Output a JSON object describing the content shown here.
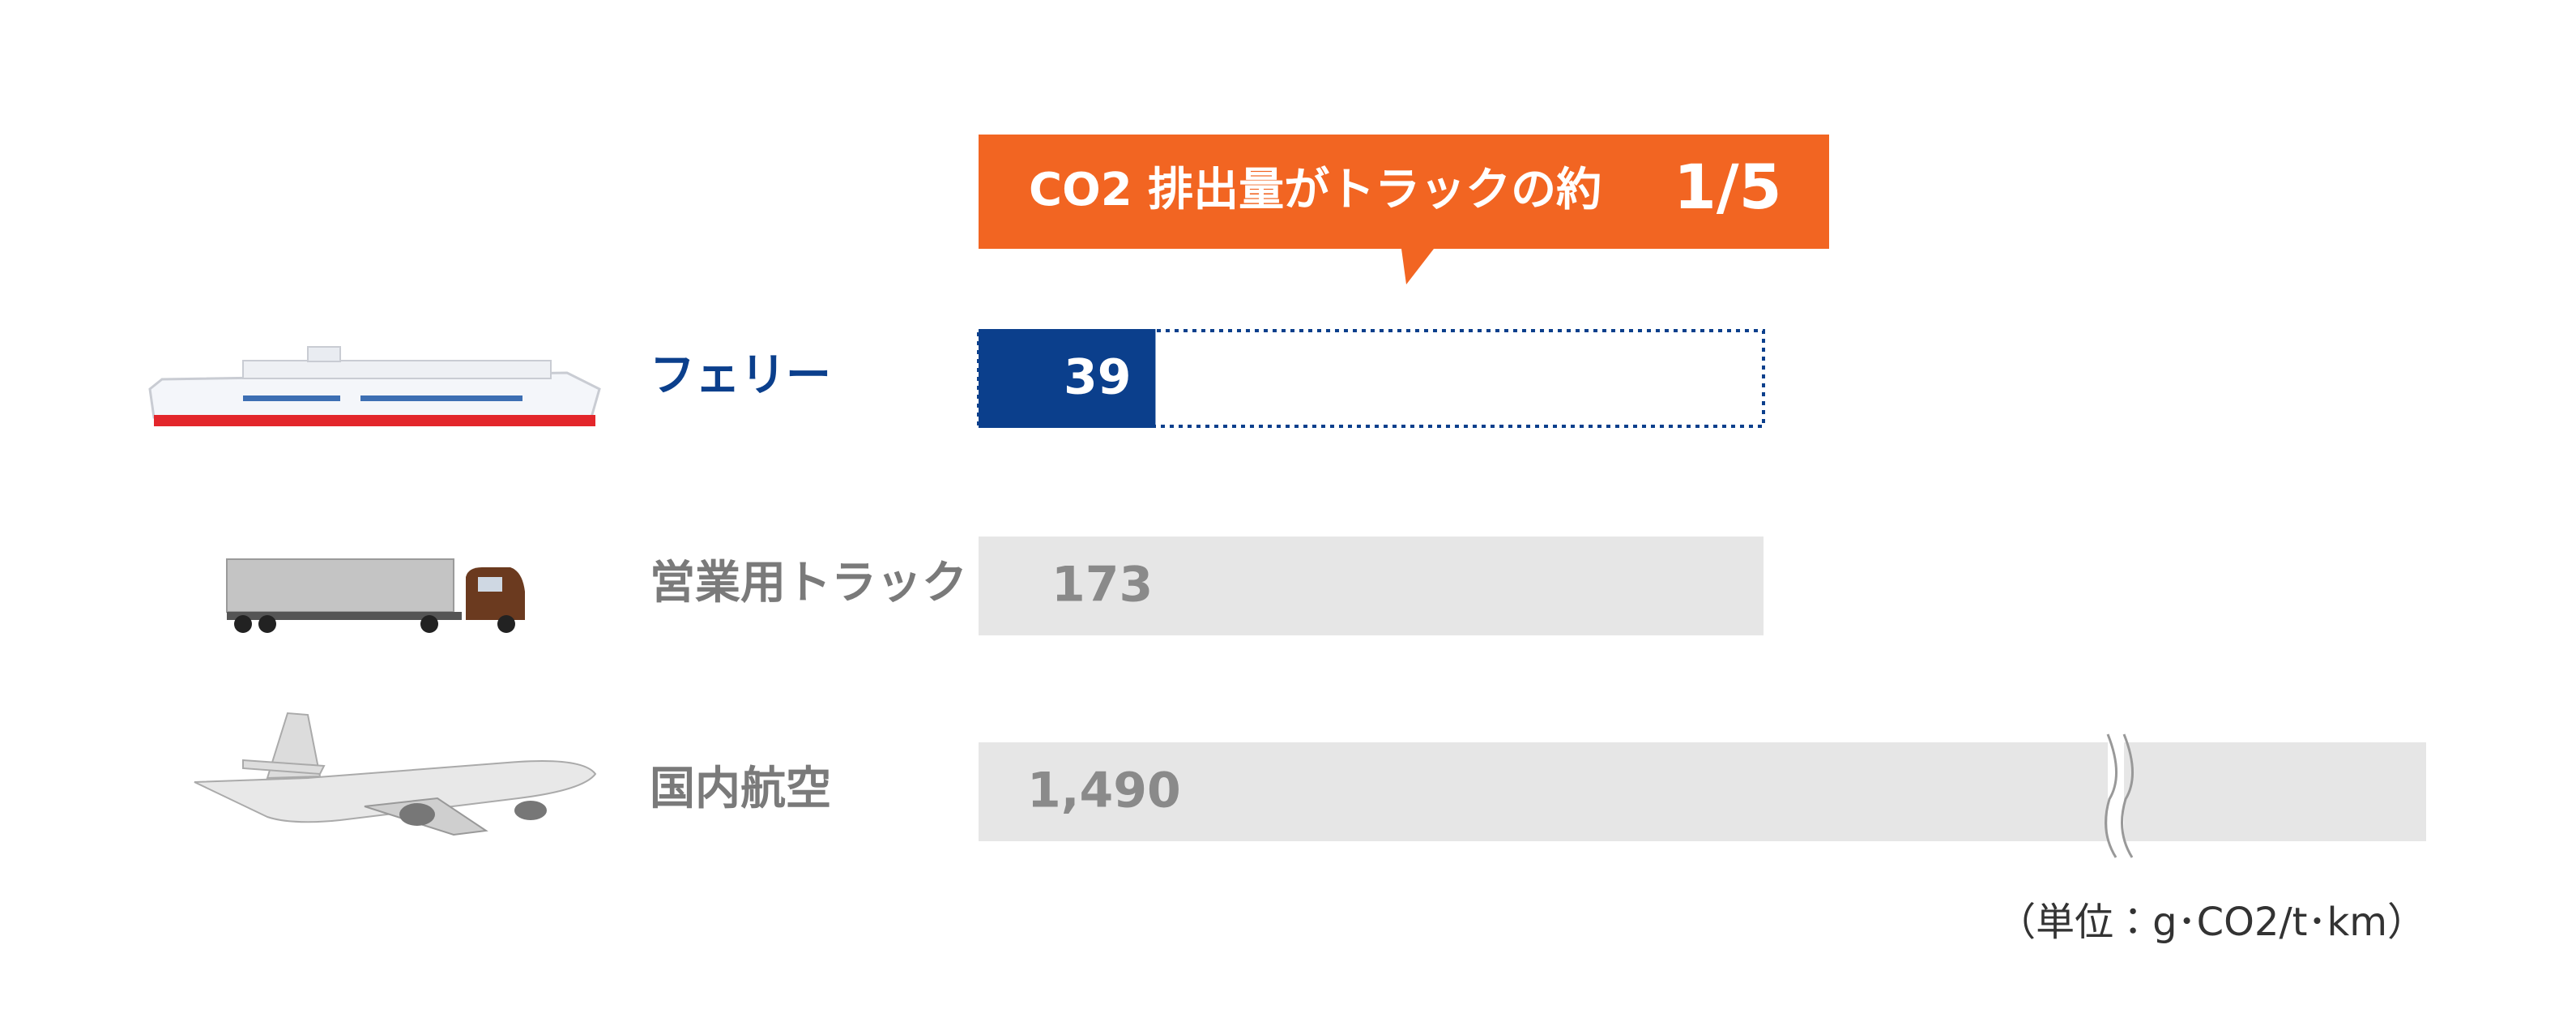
{
  "chart_data": {
    "type": "bar",
    "orientation": "horizontal",
    "categories": [
      "フェリー",
      "営業用トラック",
      "国内航空"
    ],
    "category_colors": [
      "#0b3f8c",
      "#7a7a7a",
      "#7a7a7a"
    ],
    "series": [
      {
        "colors": [
          "#0b3f8c",
          "#e6e6e6",
          "#e6e6e6"
        ],
        "label_colors": [
          "#ffffff",
          "#8a8a8a",
          "#8a8a8a"
        ],
        "values": [
          39,
          173,
          1490
        ],
        "value_labels": [
          "39",
          "173",
          "1,490"
        ]
      }
    ],
    "annotation": {
      "text": "CO2 排出量がトラックの約",
      "emphasis": "1/5",
      "color": "#f26522"
    },
    "unit_note": "（単位：g･CO2/t･km）"
  }
}
